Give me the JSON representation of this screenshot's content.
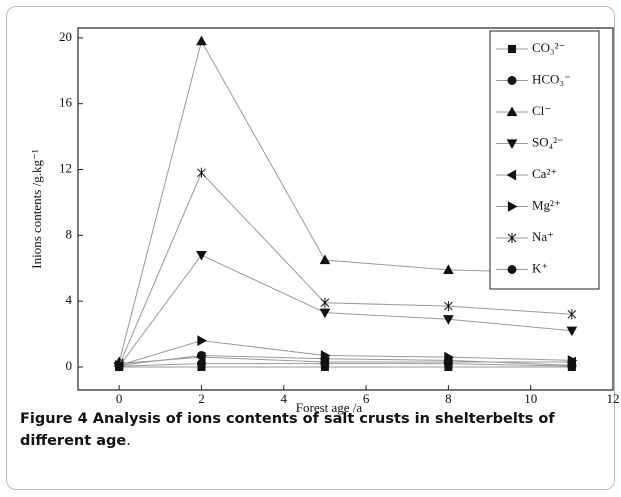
{
  "chart_data": {
    "type": "line",
    "xlabel": "Forest age /a",
    "ylabel": "Inions contents /g.kg⁻¹",
    "x": [
      0,
      2,
      5,
      8,
      11
    ],
    "xlim": [
      -1,
      12
    ],
    "xticks": [
      0,
      2,
      4,
      6,
      8,
      10,
      12
    ],
    "ylim": [
      -1.4,
      20.6
    ],
    "yticks": [
      0,
      4,
      8,
      12,
      16,
      20
    ],
    "legend": "upper right",
    "series": [
      {
        "name": "CO₃²⁻",
        "marker": "square",
        "color": "#999999",
        "values": [
          0,
          0,
          0,
          0,
          0
        ]
      },
      {
        "name": "HCO₃⁻",
        "marker": "circle",
        "color": "#999999",
        "values": [
          0.1,
          0.7,
          0.5,
          0.4,
          0.1
        ]
      },
      {
        "name": "Cl⁻",
        "marker": "triangle-up",
        "color": "#999999",
        "values": [
          0.3,
          19.8,
          6.5,
          5.9,
          5.7
        ]
      },
      {
        "name": "SO₄²⁻",
        "marker": "triangle-down",
        "color": "#999999",
        "values": [
          0.05,
          6.8,
          3.3,
          2.9,
          2.2
        ]
      },
      {
        "name": "Ca²⁺",
        "marker": "triangle-left",
        "color": "#999999",
        "values": [
          0.2,
          0.6,
          0.3,
          0.3,
          0.3
        ]
      },
      {
        "name": "Mg²⁺",
        "marker": "triangle-right",
        "color": "#999999",
        "values": [
          0.1,
          1.6,
          0.7,
          0.6,
          0.4
        ]
      },
      {
        "name": "Na⁺",
        "marker": "x-star",
        "color": "#999999",
        "values": [
          0.1,
          11.8,
          3.9,
          3.7,
          3.2
        ]
      },
      {
        "name": "K⁺",
        "marker": "circle",
        "color": "#999999",
        "values": [
          0.05,
          0.2,
          0.2,
          0.2,
          0.05
        ]
      }
    ]
  },
  "caption": {
    "label": "Figure 4",
    "text": "Analysis of ions contents of salt crusts in shelterbelts of different age",
    "tail": "."
  }
}
